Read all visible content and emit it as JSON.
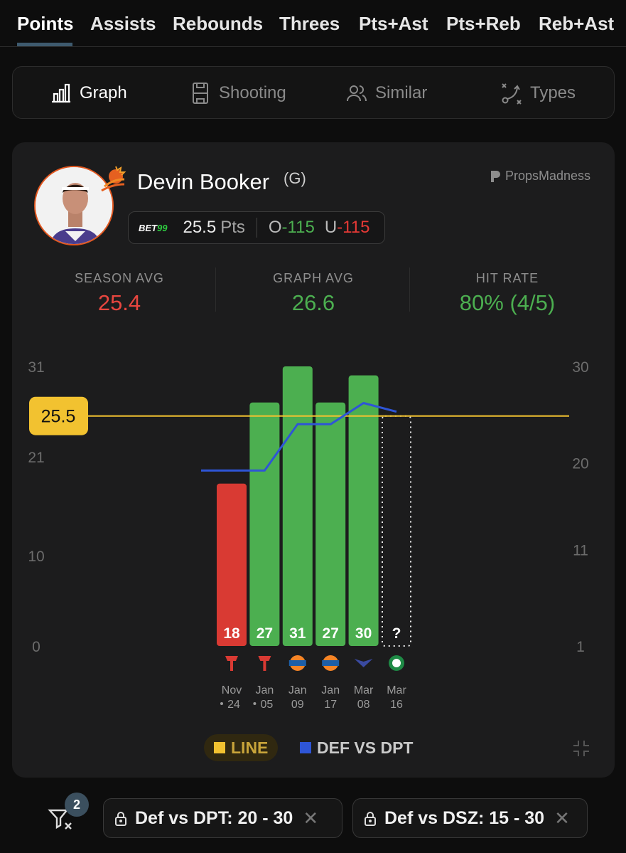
{
  "stat_tabs": [
    "Points",
    "Assists",
    "Rebounds",
    "Threes",
    "Pts+Ast",
    "Pts+Reb",
    "Reb+Ast"
  ],
  "view_tabs": [
    {
      "label": "Graph",
      "icon": "bar-chart-icon"
    },
    {
      "label": "Shooting",
      "icon": "court-icon"
    },
    {
      "label": "Similar",
      "icon": "users-icon"
    },
    {
      "label": "Types",
      "icon": "play-diagram-icon"
    }
  ],
  "player": {
    "name": "Devin Booker",
    "position": "(G)"
  },
  "brand": "PropsMadness",
  "line": {
    "book": "BET99",
    "value": "25.5",
    "unit": "Pts",
    "over_label": "O",
    "over_odds": "-115",
    "under_label": "U",
    "under_odds": "-115"
  },
  "summary": {
    "season_avg": {
      "label": "SEASON AVG",
      "value": "25.4"
    },
    "graph_avg": {
      "label": "GRAPH AVG",
      "value": "26.6"
    },
    "hit_rate": {
      "label": "HIT RATE",
      "value": "80% (4/5)"
    }
  },
  "chart_data": {
    "type": "bar",
    "line_value": 25.5,
    "line_label": "25.5",
    "y_left_ticks": [
      "31",
      "21",
      "10",
      "0"
    ],
    "y_right_ticks": [
      "30",
      "20",
      "11",
      "1"
    ],
    "y_left_range": [
      0,
      31
    ],
    "y_right_range": [
      1,
      30
    ],
    "games": [
      {
        "value": 18,
        "label": "18",
        "result": "miss",
        "opp": "HOU",
        "month": "Nov",
        "day": "24",
        "dot": true,
        "def_vs_dpt": 19.2
      },
      {
        "value": 27,
        "label": "27",
        "result": "hit",
        "opp": "HOU",
        "month": "Jan",
        "day": "05",
        "dot": true,
        "def_vs_dpt": 19.2
      },
      {
        "value": 31,
        "label": "31",
        "result": "hit",
        "opp": "NYK",
        "month": "Jan",
        "day": "09",
        "dot": false,
        "def_vs_dpt": 24
      },
      {
        "value": 27,
        "label": "27",
        "result": "hit",
        "opp": "NYK",
        "month": "Jan",
        "day": "17",
        "dot": false,
        "def_vs_dpt": 24
      },
      {
        "value": 30,
        "label": "30",
        "result": "hit",
        "opp": "CHA",
        "month": "Mar",
        "day": "08",
        "dot": false,
        "def_vs_dpt": 26.2
      },
      {
        "value": null,
        "label": "?",
        "result": "pending",
        "opp": "BOS",
        "month": "Mar",
        "day": "16",
        "dot": false,
        "def_vs_dpt": 25.3
      }
    ],
    "colors": {
      "hit": "#4caf50",
      "miss": "#d93a33",
      "line": "#f2c230",
      "def_line": "#2e55d6"
    },
    "legend": [
      "LINE",
      "DEF VS DPT"
    ]
  },
  "filters": {
    "count": "2",
    "chips": [
      "Def vs DPT: 20 - 30",
      "Def vs DSZ: 15 - 30"
    ]
  }
}
